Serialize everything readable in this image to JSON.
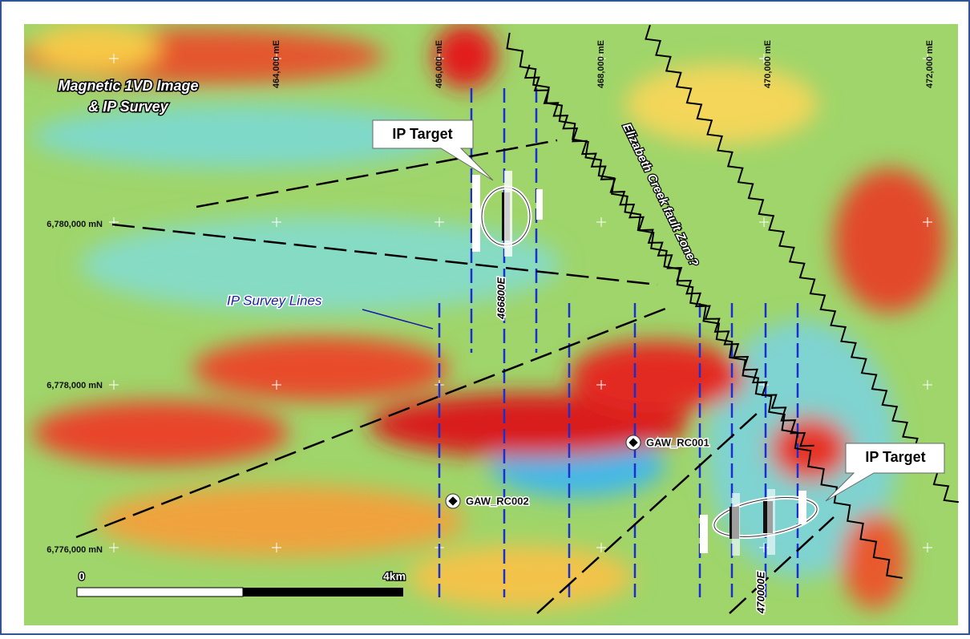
{
  "map": {
    "title": [
      "Magnetic 1VD Image",
      "& IP Survey"
    ],
    "eastings": [
      "464,000 mE",
      "466,000 mE",
      "468,000 mE",
      "470,000 mE",
      "472,000 mE"
    ],
    "northings": [
      "6,780,000 mN",
      "6,778,000 mN",
      "6,776,000 mN"
    ],
    "callouts": [
      "IP Target",
      "IP Target"
    ],
    "fault_label": "Elizabeth Creek fault Zone?",
    "survey_label": "IP Survey Lines",
    "line_labels": [
      "466800E",
      "470000E"
    ],
    "drillholes": [
      "GAW_RC001",
      "GAW_RC002"
    ],
    "scale": [
      "0",
      "4km"
    ]
  }
}
